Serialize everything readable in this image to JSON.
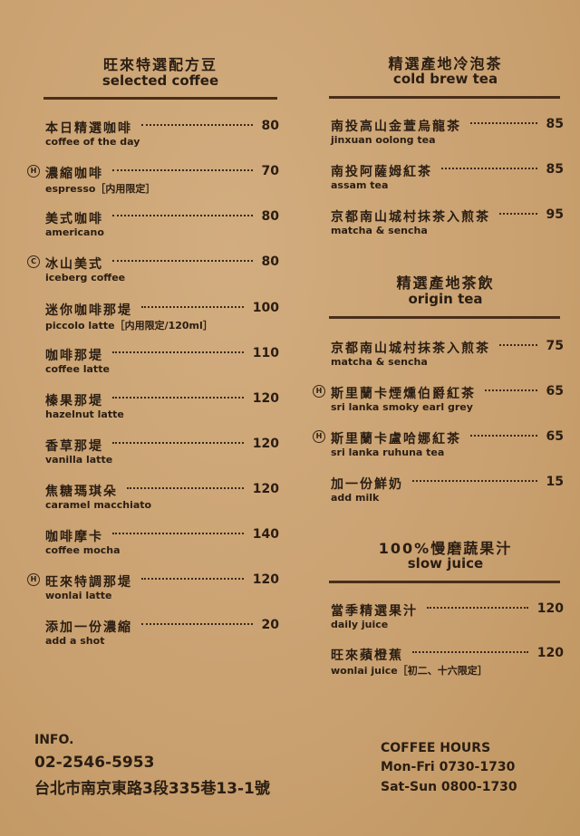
{
  "left": {
    "title_zh": "旺來特選配方豆",
    "title_en": "selected coffee",
    "items": [
      {
        "zh": "本日精選咖啡",
        "en": "coffee of the day",
        "price": "80"
      },
      {
        "zh": "濃縮咖啡",
        "en": "espresso［内用限定］",
        "price": "70",
        "badge": "H"
      },
      {
        "zh": "美式咖啡",
        "en": "americano",
        "price": "80"
      },
      {
        "zh": "冰山美式",
        "en": "iceberg coffee",
        "price": "80",
        "badge": "C"
      },
      {
        "zh": "迷你咖啡那堤",
        "en": "piccolo latte［内用限定/120ml］",
        "price": "100"
      },
      {
        "zh": "咖啡那堤",
        "en": "coffee latte",
        "price": "110"
      },
      {
        "zh": "榛果那堤",
        "en": "hazelnut latte",
        "price": "120"
      },
      {
        "zh": "香草那堤",
        "en": "vanilla latte",
        "price": "120"
      },
      {
        "zh": "焦糖瑪琪朵",
        "en": "caramel macchiato",
        "price": "120"
      },
      {
        "zh": "咖啡摩卡",
        "en": "coffee mocha",
        "price": "140"
      },
      {
        "zh": "旺來特調那堤",
        "en": "wonlai latte",
        "price": "120",
        "badge": "H"
      },
      {
        "zh": "添加一份濃縮",
        "en": "add a shot",
        "price": "20"
      }
    ]
  },
  "cold_brew": {
    "title_zh": "精選產地冷泡茶",
    "title_en": "cold brew tea",
    "items": [
      {
        "zh": "南投高山金萱烏龍茶",
        "en": "jinxuan oolong tea",
        "price": "85"
      },
      {
        "zh": "南投阿薩姆紅茶",
        "en": "assam tea",
        "price": "85"
      },
      {
        "zh": "京都南山城村抹茶入煎茶",
        "en": "matcha & sencha",
        "price": "95"
      }
    ]
  },
  "origin_tea": {
    "title_zh": "精選產地茶飲",
    "title_en": "origin tea",
    "items": [
      {
        "zh": "京都南山城村抹茶入煎茶",
        "en": "matcha & sencha",
        "price": "75"
      },
      {
        "zh": "斯里蘭卡煙燻伯爵紅茶",
        "en": "sri lanka smoky earl grey",
        "price": "65",
        "badge": "H"
      },
      {
        "zh": "斯里蘭卡盧哈娜紅茶",
        "en": "sri lanka ruhuna tea",
        "price": "65",
        "badge": "H"
      },
      {
        "zh": "加一份鮮奶",
        "en": "add milk",
        "price": "15"
      }
    ]
  },
  "juice": {
    "title_zh": "100%慢磨蔬果汁",
    "title_en": "slow juice",
    "items": [
      {
        "zh": "當季精選果汁",
        "en": "daily juice",
        "price": "120"
      },
      {
        "zh": "旺來蘋橙蕉",
        "en": "wonlai juice［初二、十六限定］",
        "price": "120"
      }
    ]
  },
  "info": {
    "label": "INFO.",
    "phone": "02-2546-5953",
    "address": "台北市南京東路3段335巷13-1號"
  },
  "hours": {
    "label": "COFFEE HOURS",
    "weekday": "Mon-Fri 0730-1730",
    "weekend": "Sat-Sun 0800-1730"
  }
}
